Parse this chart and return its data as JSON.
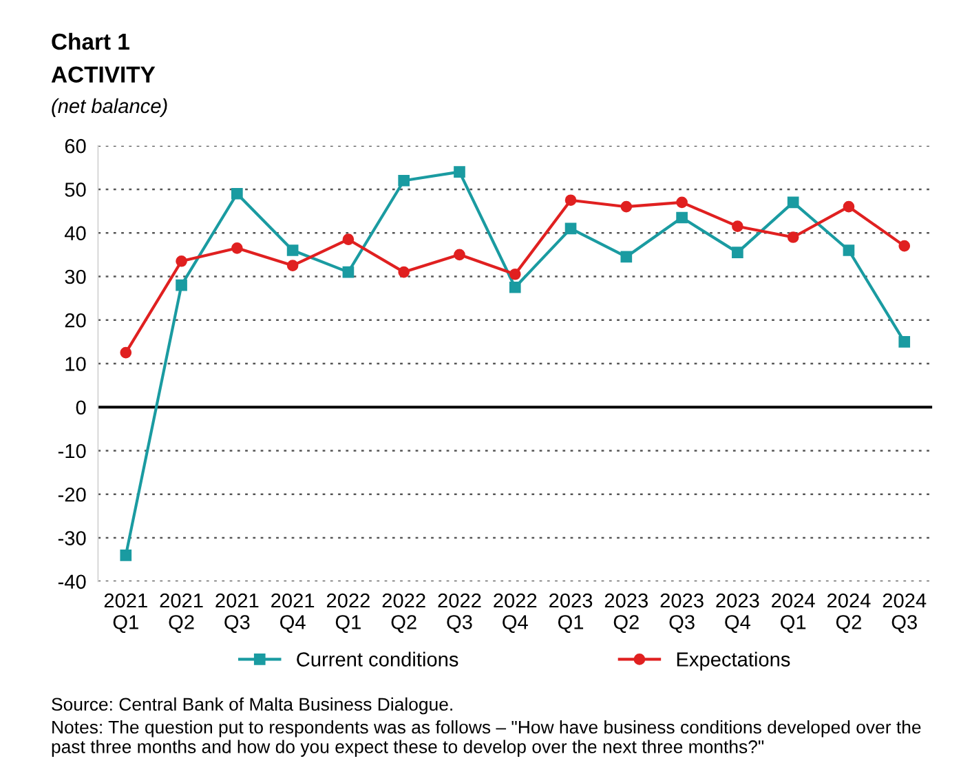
{
  "chart_data": {
    "type": "line",
    "title": "Chart 1",
    "subtitle": "ACTIVITY",
    "ylabel": "(net balance)",
    "categories": [
      "2021\nQ1",
      "2021\nQ2",
      "2021\nQ3",
      "2021\nQ4",
      "2022\nQ1",
      "2022\nQ2",
      "2022\nQ3",
      "2022\nQ4",
      "2023\nQ1",
      "2023\nQ2",
      "2023\nQ3",
      "2023\nQ4",
      "2024\nQ1",
      "2024\nQ2",
      "2024\nQ3"
    ],
    "series": [
      {
        "name": "Current conditions",
        "color": "#1a9ba1",
        "marker": "square",
        "values": [
          -34,
          28,
          49,
          36,
          31,
          52,
          54,
          27.5,
          41,
          34.5,
          43.5,
          35.5,
          47,
          36,
          15
        ]
      },
      {
        "name": "Expectations",
        "color": "#e02020",
        "marker": "circle",
        "values": [
          12.5,
          33.5,
          36.5,
          32.5,
          38.5,
          31,
          35,
          30.5,
          47.5,
          46,
          47,
          41.5,
          39,
          46,
          37
        ]
      }
    ],
    "ylim": [
      -40,
      60
    ],
    "yticks": [
      -40,
      -30,
      -20,
      -10,
      0,
      10,
      20,
      30,
      40,
      50,
      60
    ],
    "grid": "y",
    "legend": "bottom",
    "line_style": "solid",
    "ref_lines": [
      {
        "axis": "y",
        "value": 0,
        "color": "#000000"
      }
    ],
    "annotations": [
      "Source: Central Bank of Malta Business Dialogue.",
      "Notes: The question put to respondents was as follows – \"How have business conditions developed over the past three months and how do you expect these to develop over the next three months?\""
    ]
  }
}
